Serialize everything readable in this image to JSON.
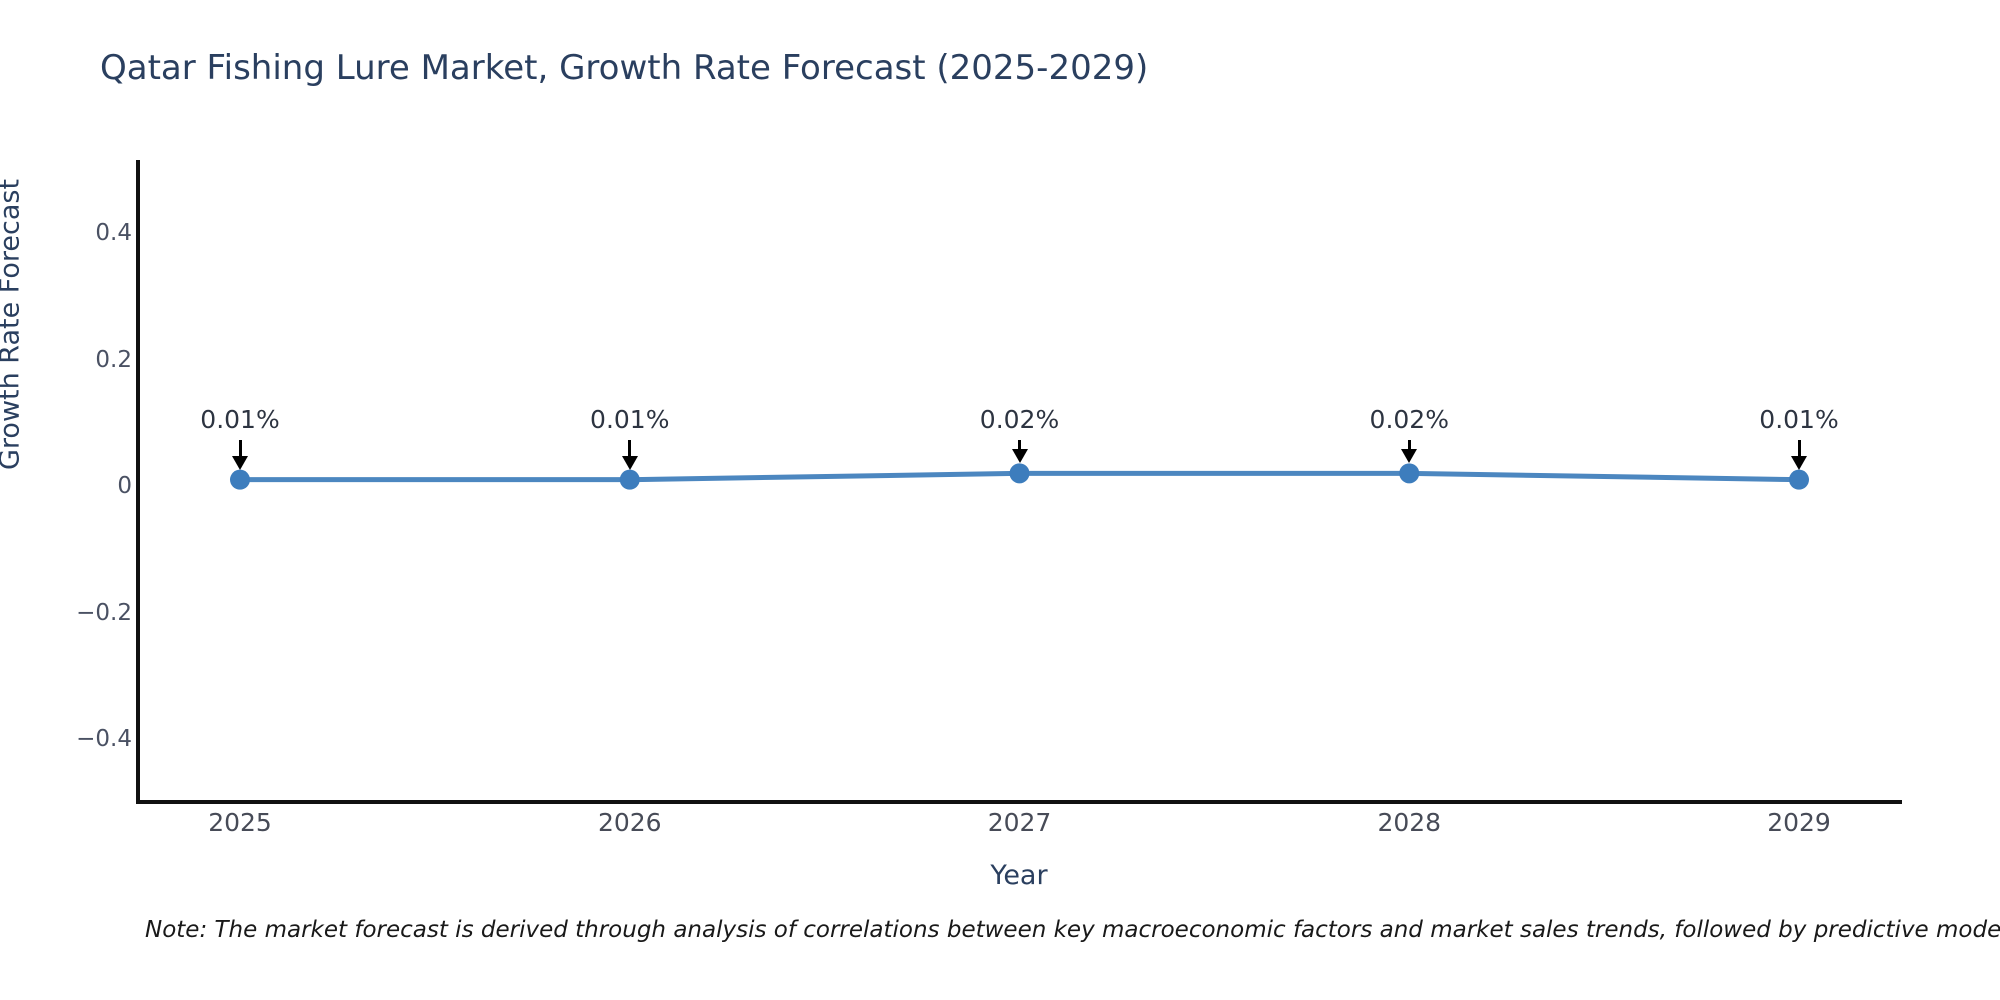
{
  "title": "Qatar Fishing Lure Market, Growth Rate Forecast (2025-2029)",
  "note": "Note: The market forecast is derived through analysis of correlations between key macroeconomic factors and market sales trends, followed by predictive modeling to project future sales.",
  "colors": {
    "title": "#2a3f5f",
    "axis_line": "#111111",
    "line": "#4c87c0",
    "marker": "#3d7dbd",
    "arrow": "#000000"
  },
  "chart_data": {
    "type": "line",
    "title": "Qatar Fishing Lure Market, Growth Rate Forecast (2025-2029)",
    "xlabel": "Year",
    "ylabel": "Growth Rate Forecast",
    "categories": [
      "2025",
      "2026",
      "2027",
      "2028",
      "2029"
    ],
    "values": [
      0.01,
      0.01,
      0.02,
      0.02,
      0.01
    ],
    "annotations": [
      "0.01%",
      "0.01%",
      "0.02%",
      "0.02%",
      "0.01%"
    ],
    "series_name": "Growth Rate Forecast",
    "yticks": [
      0.4,
      0.2,
      0,
      -0.2,
      -0.4
    ],
    "ytick_labels": [
      "0.4",
      "0.2",
      "0",
      "−0.2",
      "−0.4"
    ],
    "ylim": [
      -0.5,
      0.52
    ],
    "grid": false,
    "legend": false,
    "line_color": "#4c87c0",
    "marker_color": "#3d7dbd"
  }
}
